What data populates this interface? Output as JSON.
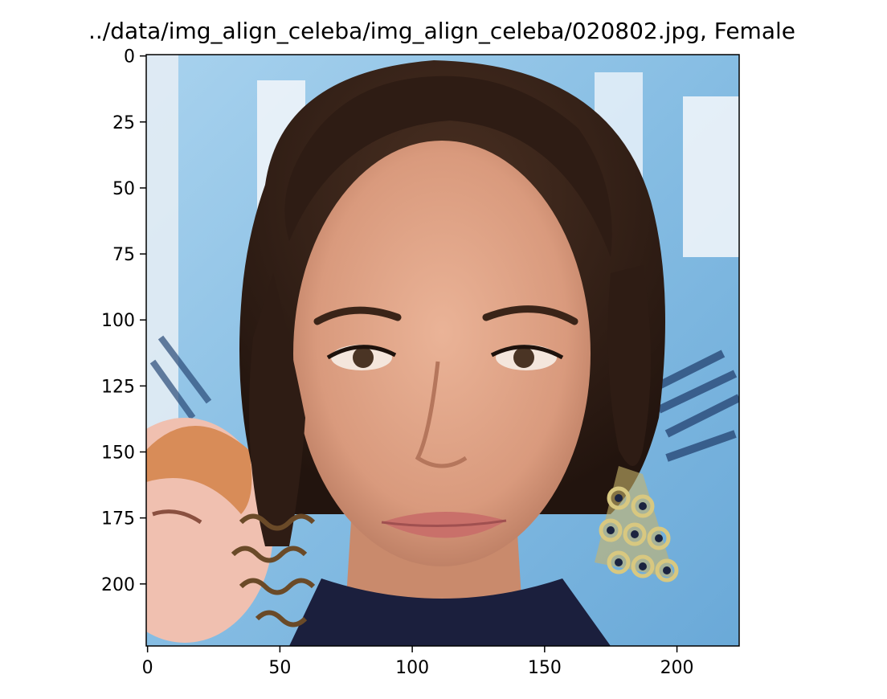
{
  "figure": {
    "title": "../data/img_align_celeba/img_align_celeba/020802.jpg, Female",
    "image_description_name": "celebrity-face-photo"
  },
  "axes": {
    "x": {
      "min": -0.5,
      "max": 223.5,
      "ticks": [
        0,
        50,
        100,
        150,
        200
      ],
      "tick_labels": [
        "0",
        "50",
        "100",
        "150",
        "200"
      ]
    },
    "y": {
      "min": -0.5,
      "max": 223.5,
      "inverted": true,
      "ticks": [
        0,
        25,
        50,
        75,
        100,
        125,
        150,
        175,
        200
      ],
      "tick_labels": [
        "0",
        "25",
        "50",
        "75",
        "100",
        "125",
        "150",
        "175",
        "200"
      ]
    }
  },
  "colors": {
    "background_blue": "#8fc3e6",
    "poster_white": "#eef4fa",
    "hair": "#2e1c14",
    "skin": "#e2a487",
    "top_navy": "#1b1f3d",
    "earring_gold": "#c8b46a",
    "left_face_skin": "#f0c0b0",
    "left_hair": "#d88c58"
  }
}
